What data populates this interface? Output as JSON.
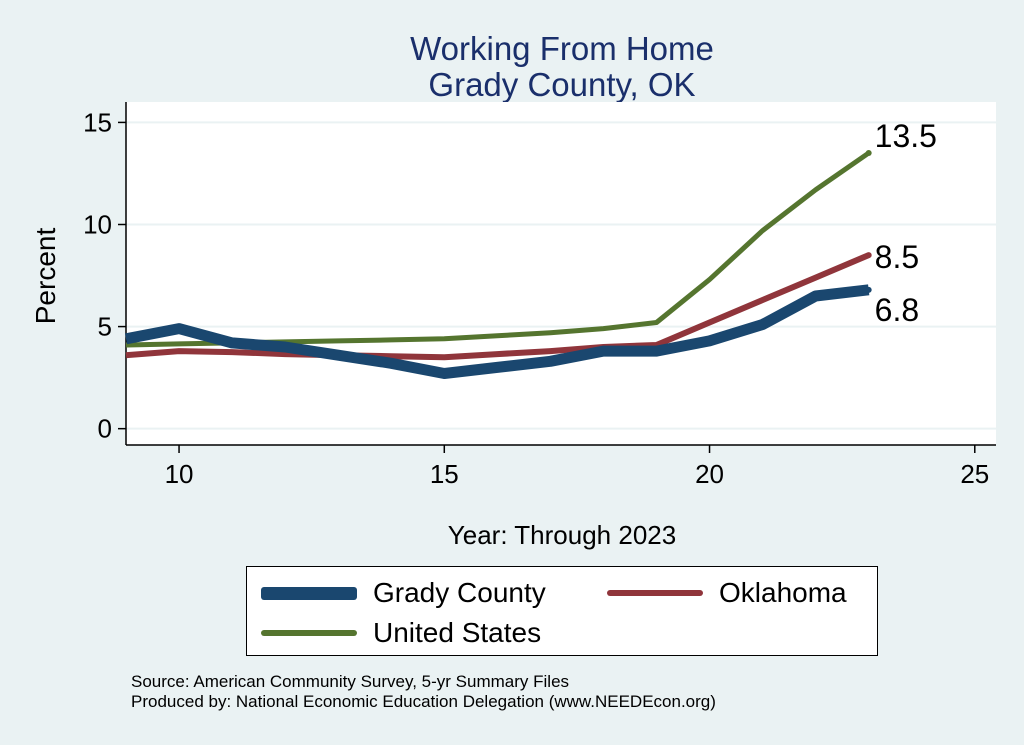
{
  "chart_data": {
    "type": "line",
    "title": "Working From Home",
    "subtitle": "Grady County, OK",
    "xlabel": "Year: Through 2023",
    "ylabel": "Percent",
    "xlim": [
      9,
      25.4
    ],
    "ylim": [
      -0.8,
      16
    ],
    "x_ticks": [
      "10",
      "15",
      "20",
      "25"
    ],
    "y_ticks": [
      "0",
      "5",
      "10",
      "15"
    ],
    "grid": true,
    "legend_position": "bottom",
    "series": [
      {
        "name": "Grady County",
        "color": "#1a476f",
        "end_label": "6.8",
        "x": [
          9,
          10,
          11,
          12,
          13,
          14,
          15,
          16,
          17,
          18,
          19,
          20,
          21,
          22,
          23
        ],
        "y": [
          4.4,
          4.9,
          4.2,
          4.0,
          3.6,
          3.2,
          2.7,
          3.0,
          3.3,
          3.8,
          3.8,
          4.3,
          5.1,
          6.5,
          6.8
        ]
      },
      {
        "name": "Oklahoma",
        "color": "#90353b",
        "end_label": "8.5",
        "x": [
          9,
          10,
          11,
          12,
          13,
          14,
          15,
          16,
          17,
          18,
          19,
          20,
          21,
          22,
          23
        ],
        "y": [
          3.6,
          3.8,
          3.75,
          3.65,
          3.6,
          3.55,
          3.5,
          3.65,
          3.8,
          4.0,
          4.1,
          5.2,
          6.3,
          7.4,
          8.5
        ]
      },
      {
        "name": "United States",
        "color": "#55752f",
        "end_label": "13.5",
        "x": [
          9,
          10,
          11,
          12,
          13,
          14,
          15,
          16,
          17,
          18,
          19,
          20,
          21,
          22,
          23
        ],
        "y": [
          4.1,
          4.15,
          4.2,
          4.25,
          4.3,
          4.35,
          4.4,
          4.55,
          4.7,
          4.9,
          5.2,
          7.3,
          9.7,
          11.7,
          13.5
        ]
      }
    ]
  },
  "source_line": "Source: American Community Survey, 5-yr Summary Files",
  "produced_line": "Produced by: National Economic Education Delegation (www.NEEDEcon.org)"
}
